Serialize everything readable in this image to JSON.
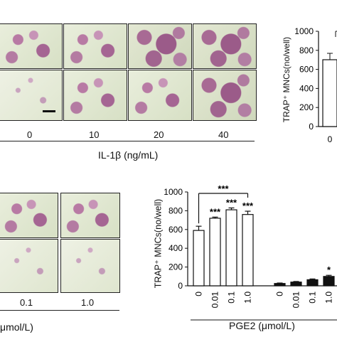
{
  "top_panel": {
    "dose_labels": [
      "0",
      "10",
      "20",
      "40"
    ],
    "xlabel": "IL-1β (ng/mL)"
  },
  "top_chart": {
    "ylabel": "TRAP⁺ MNCs(no/well)",
    "yticks": [
      "0",
      "200",
      "400",
      "600",
      "800",
      "1000"
    ],
    "visible_x_tick": "0"
  },
  "bottom_panel": {
    "dose_labels": [
      "0.1",
      "1.0"
    ],
    "xlabel_fragment": "μmol/L)"
  },
  "chart_data": {
    "type": "bar",
    "ylabel": "TRAP⁺ MNCs(no/well)",
    "xlabel": "PGE2 (μmol/L)",
    "ylim": [
      0,
      1000
    ],
    "yticks": [
      0,
      200,
      400,
      600,
      800,
      1000
    ],
    "groups": [
      {
        "categories": [
          "0",
          "0.01",
          "0.1",
          "1.0"
        ],
        "values": [
          590,
          720,
          810,
          760
        ],
        "errors": [
          45,
          12,
          20,
          35
        ],
        "fill": "#ffffff",
        "significance": [
          "",
          "***",
          "***",
          "***"
        ]
      },
      {
        "categories": [
          "0",
          "0.01",
          "0.1",
          "1.0"
        ],
        "values": [
          25,
          40,
          65,
          100
        ],
        "errors": [
          5,
          6,
          8,
          12
        ],
        "fill": "#111111",
        "significance": [
          "",
          "",
          "",
          "*"
        ]
      }
    ],
    "bracket_label": "***"
  }
}
